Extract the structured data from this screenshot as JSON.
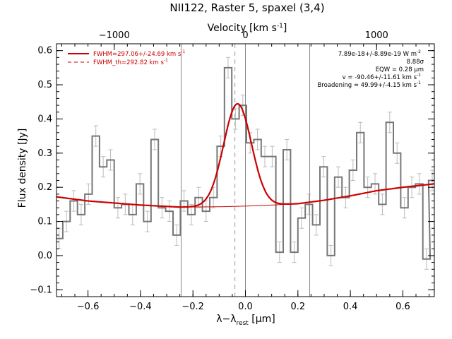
{
  "chart_data": {
    "type": "line",
    "title": "NII122, Raster 5, spaxel (3,4)",
    "xlabel_main": "λ−λ",
    "xlabel_sub": "rest",
    "xlabel_unit_open": " [",
    "xlabel_unit_mu": "μ",
    "xlabel_unit_close": "m]",
    "ylabel": "Flux density [Jy]",
    "top_axis_label": "Velocity [km s",
    "top_axis_sup": "-1",
    "top_axis_close": "]",
    "xlim": [
      -0.72,
      0.72
    ],
    "ylim": [
      -0.12,
      0.62
    ],
    "x_ticks": [
      -0.6,
      -0.4,
      -0.2,
      0.0,
      0.2,
      0.4,
      0.6
    ],
    "x_tick_labels": [
      "−0.6",
      "−0.4",
      "−0.2",
      "0.0",
      "0.2",
      "0.4",
      "0.6"
    ],
    "y_ticks": [
      -0.1,
      0.0,
      0.1,
      0.2,
      0.3,
      0.4,
      0.5,
      0.6
    ],
    "y_tick_labels": [
      "−0.1",
      "0.0",
      "0.1",
      "0.2",
      "0.3",
      "0.4",
      "0.5",
      "0.6"
    ],
    "top_ticks_um": [
      -0.5,
      0.0,
      0.5
    ],
    "top_tick_labels": [
      "−1000",
      "0",
      "1000"
    ],
    "vertical_lines_um": [
      -0.245,
      0.0,
      0.245
    ],
    "dashed_line_um": -0.04,
    "bin_width_um": 0.028,
    "spectrum": {
      "name": "observed spectrum",
      "x": [
        -0.71,
        -0.682,
        -0.654,
        -0.626,
        -0.598,
        -0.57,
        -0.542,
        -0.514,
        -0.486,
        -0.458,
        -0.43,
        -0.402,
        -0.374,
        -0.346,
        -0.318,
        -0.29,
        -0.262,
        -0.234,
        -0.206,
        -0.178,
        -0.15,
        -0.122,
        -0.094,
        -0.066,
        -0.038,
        -0.01,
        0.018,
        0.046,
        0.074,
        0.102,
        0.13,
        0.158,
        0.186,
        0.214,
        0.242,
        0.27,
        0.298,
        0.326,
        0.354,
        0.382,
        0.41,
        0.438,
        0.466,
        0.494,
        0.522,
        0.55,
        0.578,
        0.606,
        0.634,
        0.662,
        0.69,
        0.712
      ],
      "y": [
        0.05,
        0.1,
        0.16,
        0.12,
        0.18,
        0.35,
        0.26,
        0.28,
        0.14,
        0.15,
        0.12,
        0.21,
        0.1,
        0.34,
        0.14,
        0.13,
        0.06,
        0.16,
        0.12,
        0.17,
        0.13,
        0.17,
        0.32,
        0.55,
        0.4,
        0.44,
        0.33,
        0.34,
        0.29,
        0.29,
        0.01,
        0.31,
        0.01,
        0.11,
        0.15,
        0.09,
        0.26,
        0.0,
        0.23,
        0.17,
        0.25,
        0.36,
        0.2,
        0.21,
        0.15,
        0.39,
        0.3,
        0.14,
        0.2,
        0.21,
        -0.01,
        0.22
      ],
      "err": [
        0.03,
        0.03,
        0.03,
        0.03,
        0.03,
        0.03,
        0.03,
        0.03,
        0.03,
        0.03,
        0.03,
        0.03,
        0.03,
        0.03,
        0.03,
        0.03,
        0.03,
        0.03,
        0.03,
        0.03,
        0.03,
        0.03,
        0.03,
        0.03,
        0.03,
        0.03,
        0.03,
        0.03,
        0.03,
        0.03,
        0.03,
        0.03,
        0.03,
        0.03,
        0.03,
        0.03,
        0.03,
        0.03,
        0.03,
        0.03,
        0.03,
        0.03,
        0.03,
        0.03,
        0.03,
        0.03,
        0.03,
        0.03,
        0.03,
        0.03,
        0.03,
        0.03
      ]
    },
    "fit": {
      "name": "FWHM=297.06+/-24.69 km s",
      "name_sup": "-1",
      "color": "#cc0000",
      "continuum_points": [
        [
          -0.72,
          0.172
        ],
        [
          -0.6,
          0.16
        ],
        [
          -0.4,
          0.148
        ],
        [
          -0.25,
          0.142
        ],
        [
          -0.1,
          0.143
        ],
        [
          0.0,
          0.145
        ],
        [
          0.1,
          0.148
        ],
        [
          0.2,
          0.152
        ],
        [
          0.3,
          0.162
        ],
        [
          0.4,
          0.175
        ],
        [
          0.5,
          0.19
        ],
        [
          0.6,
          0.2
        ],
        [
          0.72,
          0.21
        ]
      ],
      "gaussian_center_um": -0.03,
      "gaussian_amplitude_jy": 0.3,
      "gaussian_fwhm_um": 0.125
    },
    "fit_th": {
      "name": "FWHM_th=292.82 km s",
      "name_sup": "-1",
      "color": "#cc0000",
      "style": "dashed"
    },
    "legend_position": "top-left",
    "annotations": [
      {
        "id": "flux",
        "text": "7.89e-18+/-8.89e-19 W m",
        "sup": "-2"
      },
      {
        "id": "sigma",
        "text": "8.88σ",
        "sup": ""
      },
      {
        "id": "eqw",
        "text": "EQW = 0.28 μm",
        "sup": ""
      },
      {
        "id": "velocity",
        "text": "v = -90.46+/-11.61 km s",
        "sup": "-1"
      },
      {
        "id": "broadening",
        "text": "Broadening = 49.99+/-4.15 km s",
        "sup": "-1"
      }
    ]
  }
}
